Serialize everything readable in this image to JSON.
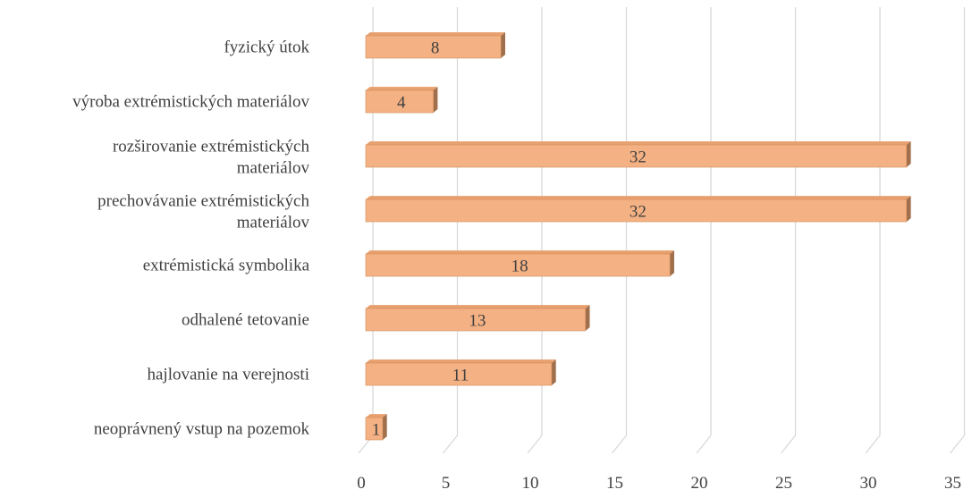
{
  "chart_data": {
    "type": "bar",
    "orientation": "horizontal",
    "style": "3d",
    "categories": [
      "fyzický útok",
      "výroba extrémistických materiálov",
      "rozširovanie extrémistických materiálov",
      "prechovávanie extrémistických materiálov ",
      "extrémistická symbolika",
      "odhalené tetovanie",
      "hajlovanie na verejnosti",
      "neoprávnený vstup na pozemok"
    ],
    "values": [
      8,
      4,
      32,
      32,
      18,
      13,
      11,
      1
    ],
    "data_labels": [
      "8",
      "4",
      "32",
      "32",
      "18",
      "13",
      "11",
      "1"
    ],
    "xlim": [
      0,
      35
    ],
    "ticks": [
      "0",
      "5",
      "10",
      "15",
      "20",
      "25",
      "30",
      "35"
    ],
    "title": "",
    "xlabel": "",
    "ylabel": "",
    "grid": true,
    "legend": "none",
    "colors": {
      "bar_front": "#F4B183",
      "bar_top": "#E8A06E",
      "bar_side": "#A0704C",
      "bar_edge": "#D18A5A",
      "grid": "#D9D9D9",
      "text": "#404040"
    }
  }
}
